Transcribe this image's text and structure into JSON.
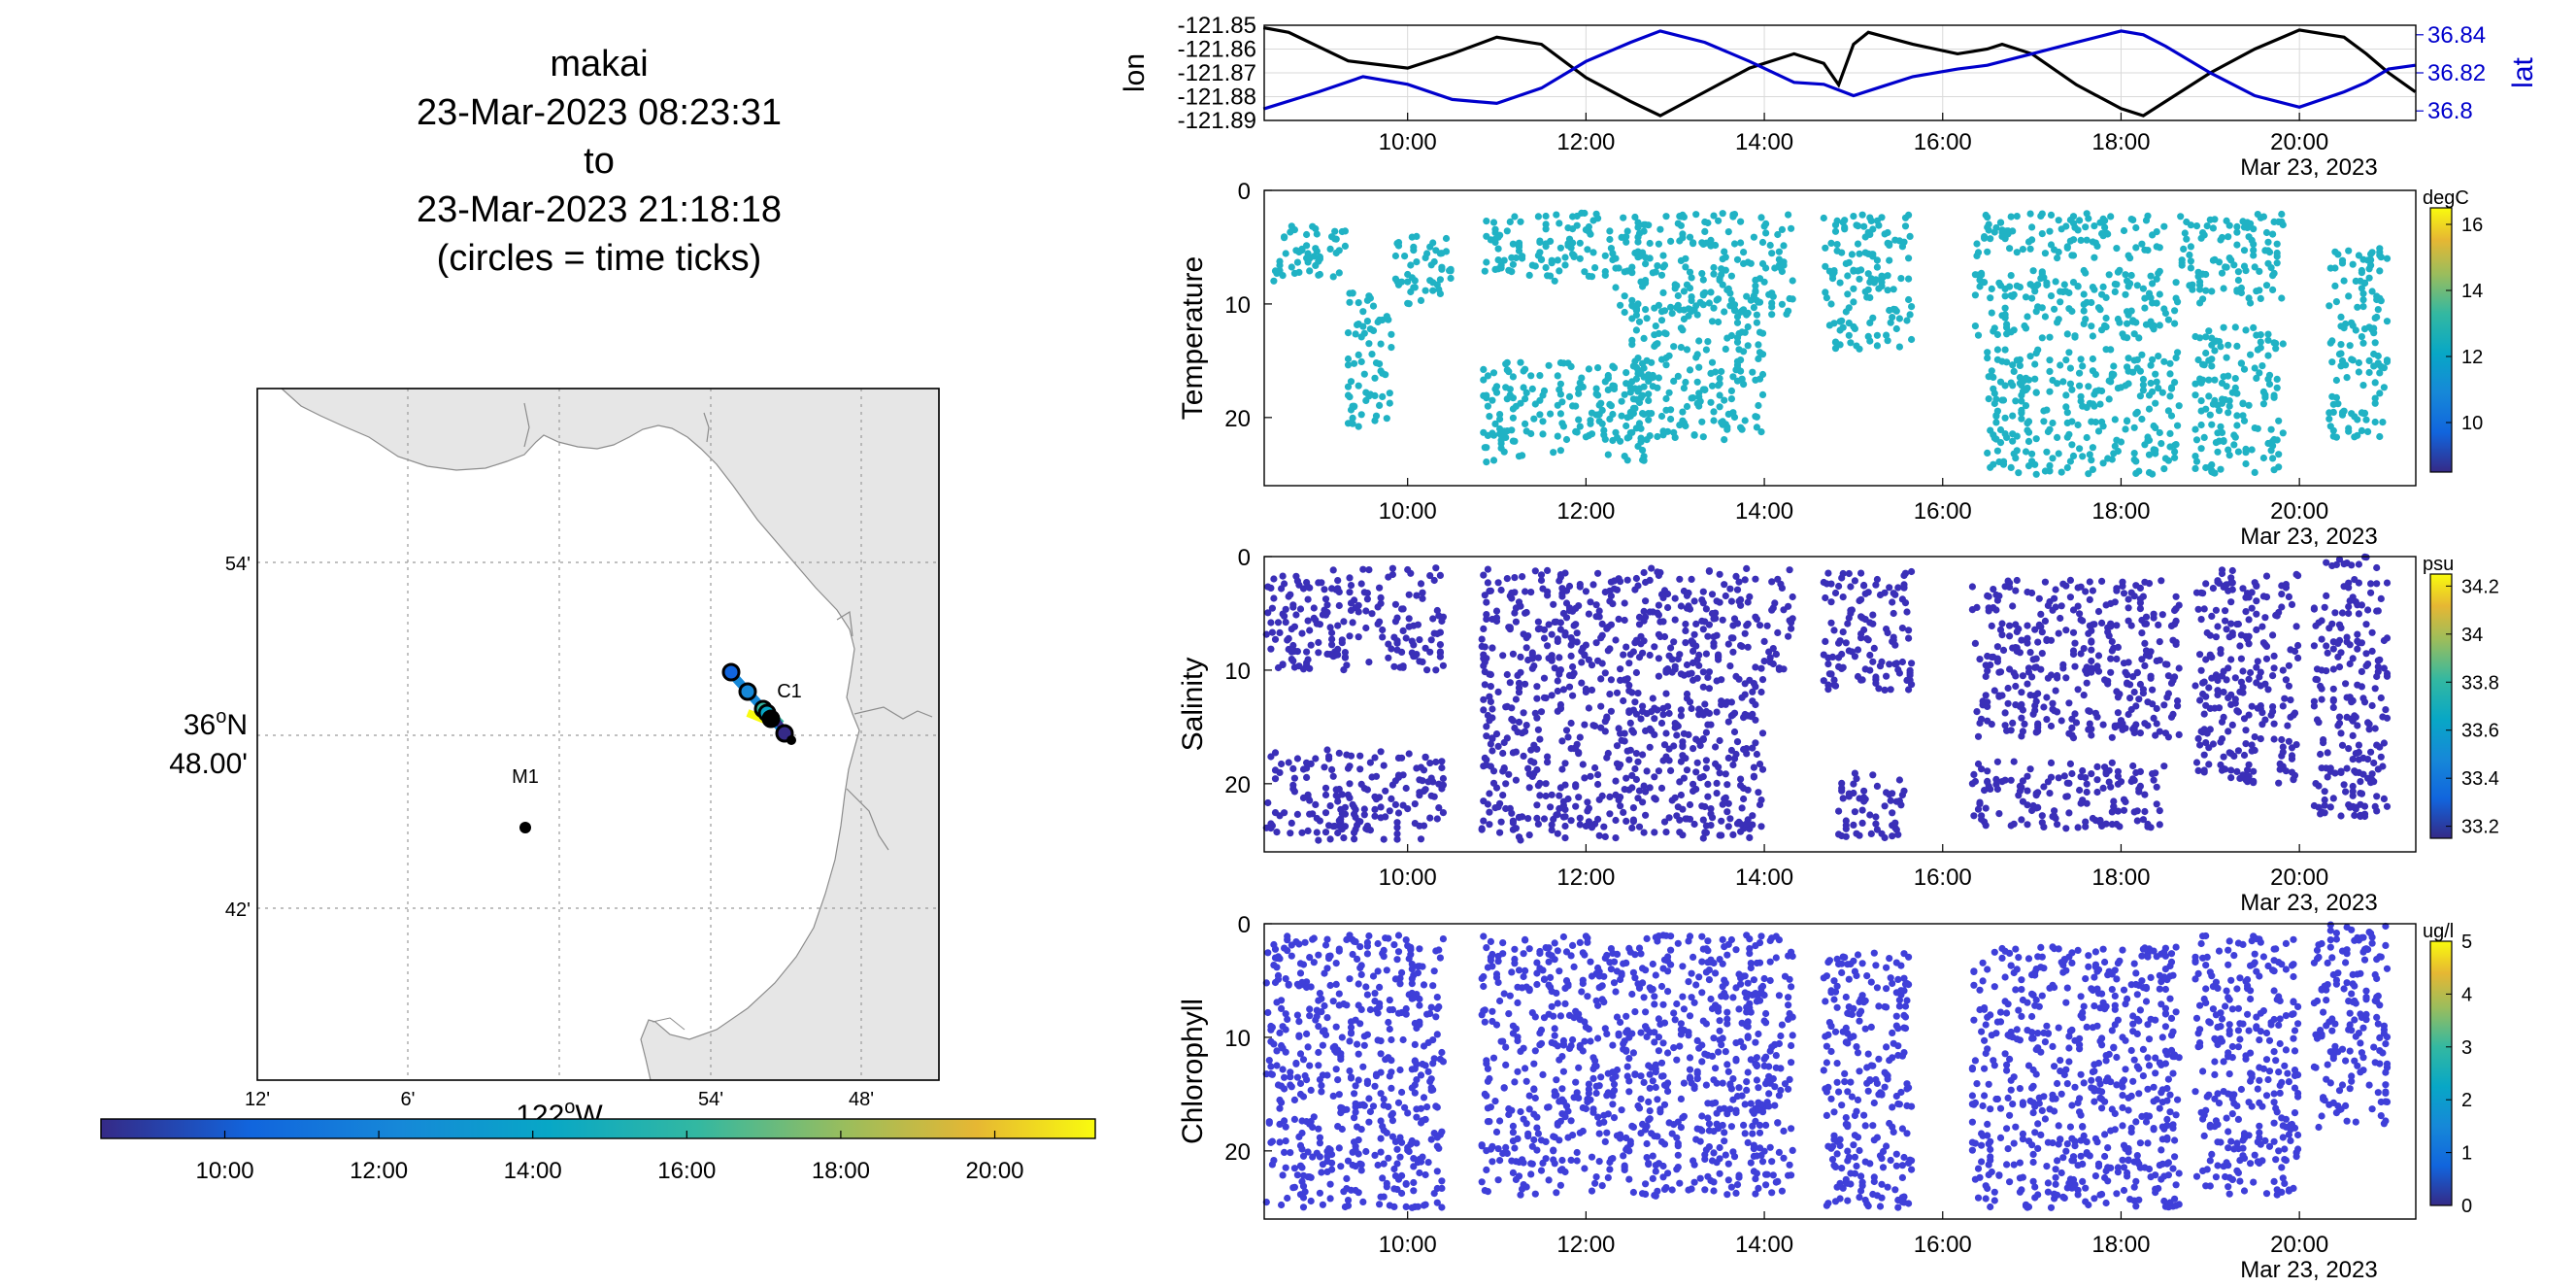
{
  "title": {
    "lines": [
      "makai",
      "23-Mar-2023 08:23:31",
      "to",
      "23-Mar-2023 21:18:18",
      "(circles = time ticks)"
    ]
  },
  "map": {
    "lat_tick_labels": [
      "54'",
      "48.00'",
      "42'"
    ],
    "lat_degree_label": "36",
    "lat_degree_suffix": "N",
    "lon_tick_labels": [
      "12'",
      "6'",
      "54'",
      "48'"
    ],
    "lon_degree_label": "122",
    "lon_degree_suffix": "W",
    "stations": [
      {
        "name": "M1"
      },
      {
        "name": "C1"
      }
    ],
    "land_color": "#e6e6e6"
  },
  "time_colorbar": {
    "tick_labels": [
      "10:00",
      "12:00",
      "14:00",
      "16:00",
      "18:00",
      "20:00"
    ]
  },
  "chart_data": [
    {
      "type": "line",
      "panel": "position",
      "x_tick_labels": [
        "10:00",
        "12:00",
        "14:00",
        "16:00",
        "18:00",
        "20:00"
      ],
      "date_label": "Mar 23, 2023",
      "xlim": [
        "08:23:31",
        "21:18:18"
      ],
      "left_axis": {
        "label": "lon",
        "tick_labels": [
          "-121.85",
          "-121.86",
          "-121.87",
          "-121.88",
          "-121.89"
        ],
        "ylim": [
          -121.89,
          -121.85
        ],
        "color": "#000000"
      },
      "right_axis": {
        "label": "lat",
        "tick_labels": [
          "36.84",
          "36.82",
          "36.8"
        ],
        "ylim": [
          36.795,
          36.845
        ],
        "color": "#0000cc"
      },
      "series": [
        {
          "name": "lon",
          "color": "#000000",
          "axis": "left",
          "x": [
            "08:23",
            "08:40",
            "09:20",
            "10:00",
            "10:30",
            "11:00",
            "11:30",
            "12:00",
            "12:30",
            "12:50",
            "13:20",
            "13:50",
            "14:20",
            "14:40",
            "14:50",
            "15:00",
            "15:10",
            "15:40",
            "16:10",
            "16:30",
            "16:40",
            "17:00",
            "17:30",
            "18:00",
            "18:15",
            "18:30",
            "19:00",
            "19:30",
            "20:00",
            "20:30",
            "20:45",
            "21:00",
            "21:18"
          ],
          "y": [
            -121.851,
            -121.853,
            -121.865,
            -121.868,
            -121.862,
            -121.855,
            -121.858,
            -121.872,
            -121.882,
            -121.888,
            -121.878,
            -121.868,
            -121.862,
            -121.866,
            -121.875,
            -121.858,
            -121.853,
            -121.858,
            -121.862,
            -121.86,
            -121.858,
            -121.862,
            -121.875,
            -121.885,
            -121.888,
            -121.882,
            -121.87,
            -121.86,
            -121.852,
            -121.855,
            -121.862,
            -121.87,
            -121.878
          ]
        },
        {
          "name": "lat",
          "color": "#0000cc",
          "axis": "right",
          "x": [
            "08:23",
            "09:00",
            "09:30",
            "10:00",
            "10:30",
            "11:00",
            "11:30",
            "12:00",
            "12:30",
            "12:50",
            "13:20",
            "13:50",
            "14:20",
            "14:40",
            "15:00",
            "15:20",
            "15:40",
            "16:10",
            "16:30",
            "17:00",
            "17:30",
            "18:00",
            "18:15",
            "18:30",
            "19:00",
            "19:30",
            "20:00",
            "20:30",
            "20:45",
            "21:00",
            "21:18"
          ],
          "y": [
            36.801,
            36.81,
            36.818,
            36.814,
            36.806,
            36.804,
            36.812,
            36.826,
            36.836,
            36.842,
            36.836,
            36.826,
            36.815,
            36.814,
            36.808,
            36.813,
            36.818,
            36.822,
            36.824,
            36.83,
            36.836,
            36.842,
            36.84,
            36.834,
            36.82,
            36.808,
            36.802,
            36.81,
            36.815,
            36.822,
            36.824
          ]
        }
      ]
    },
    {
      "type": "scatter",
      "panel": "temperature",
      "ylabel": "Temperature",
      "x_tick_labels": [
        "10:00",
        "12:00",
        "14:00",
        "16:00",
        "18:00",
        "20:00"
      ],
      "y_tick_labels": [
        "0",
        "10",
        "20"
      ],
      "ylim": [
        0,
        26
      ],
      "y_reversed": true,
      "xlim": [
        "08:23:31",
        "21:18:18"
      ],
      "point_color": "#20b2c4",
      "colorbar": {
        "unit": "degC",
        "tick_labels": [
          "16",
          "14",
          "12",
          "10"
        ],
        "range": [
          8.5,
          16.5
        ]
      },
      "date_label": "Mar 23, 2023",
      "groups": [
        {
          "t0": "08:30",
          "t1": "09:20",
          "d0": 3,
          "d1": 8
        },
        {
          "t0": "09:20",
          "t1": "09:50",
          "d0": 9,
          "d1": 21
        },
        {
          "t0": "09:50",
          "t1": "10:30",
          "d0": 4,
          "d1": 10
        },
        {
          "t0": "10:50",
          "t1": "12:20",
          "d0": 2,
          "d1": 8
        },
        {
          "t0": "10:50",
          "t1": "12:40",
          "d0": 15,
          "d1": 24
        },
        {
          "t0": "12:20",
          "t1": "14:20",
          "d0": 2,
          "d1": 11
        },
        {
          "t0": "12:30",
          "t1": "14:00",
          "d0": 10,
          "d1": 22
        },
        {
          "t0": "14:40",
          "t1": "15:40",
          "d0": 2,
          "d1": 14
        },
        {
          "t0": "16:20",
          "t1": "18:30",
          "d0": 2,
          "d1": 6
        },
        {
          "t0": "16:20",
          "t1": "18:40",
          "d0": 7,
          "d1": 13
        },
        {
          "t0": "16:30",
          "t1": "18:40",
          "d0": 14,
          "d1": 25
        },
        {
          "t0": "18:40",
          "t1": "19:50",
          "d0": 2,
          "d1": 10
        },
        {
          "t0": "18:50",
          "t1": "19:50",
          "d0": 12,
          "d1": 25
        },
        {
          "t0": "20:20",
          "t1": "21:00",
          "d0": 5,
          "d1": 22
        }
      ]
    },
    {
      "type": "scatter",
      "panel": "salinity",
      "ylabel": "Salinity",
      "x_tick_labels": [
        "10:00",
        "12:00",
        "14:00",
        "16:00",
        "18:00",
        "20:00"
      ],
      "y_tick_labels": [
        "0",
        "10",
        "20"
      ],
      "ylim": [
        0,
        26
      ],
      "y_reversed": true,
      "xlim": [
        "08:23:31",
        "21:18:18"
      ],
      "point_color": "#3a2fb8",
      "colorbar": {
        "unit": "psu",
        "tick_labels": [
          "34.2",
          "34",
          "33.8",
          "33.6",
          "33.4",
          "33.2"
        ],
        "range": [
          33.15,
          34.25
        ]
      },
      "date_label": "Mar 23, 2023",
      "groups": [
        {
          "t0": "08:25",
          "t1": "10:25",
          "d0": 1,
          "d1": 10
        },
        {
          "t0": "08:25",
          "t1": "10:25",
          "d0": 17,
          "d1": 25
        },
        {
          "t0": "10:50",
          "t1": "14:20",
          "d0": 1,
          "d1": 10
        },
        {
          "t0": "10:50",
          "t1": "14:00",
          "d0": 10,
          "d1": 25
        },
        {
          "t0": "14:40",
          "t1": "15:40",
          "d0": 1,
          "d1": 12
        },
        {
          "t0": "14:50",
          "t1": "15:35",
          "d0": 19,
          "d1": 25
        },
        {
          "t0": "16:20",
          "t1": "18:40",
          "d0": 2,
          "d1": 16
        },
        {
          "t0": "16:20",
          "t1": "18:30",
          "d0": 18,
          "d1": 24
        },
        {
          "t0": "18:50",
          "t1": "20:00",
          "d0": 1,
          "d1": 20
        },
        {
          "t0": "20:10",
          "t1": "21:00",
          "d0": 0,
          "d1": 23
        }
      ]
    },
    {
      "type": "scatter",
      "panel": "chlorophyll",
      "ylabel": "Chlorophyll",
      "x_tick_labels": [
        "10:00",
        "12:00",
        "14:00",
        "16:00",
        "18:00",
        "20:00"
      ],
      "y_tick_labels": [
        "0",
        "10",
        "20"
      ],
      "ylim": [
        0,
        26
      ],
      "y_reversed": true,
      "xlim": [
        "08:23:31",
        "21:18:18"
      ],
      "point_color": "#3f3fd9",
      "colorbar": {
        "unit": "ug/l",
        "tick_labels": [
          "5",
          "4",
          "3",
          "2",
          "1",
          "0"
        ],
        "range": [
          0,
          5
        ]
      },
      "date_label": "Mar 23, 2023",
      "groups": [
        {
          "t0": "08:25",
          "t1": "10:25",
          "d0": 1,
          "d1": 10
        },
        {
          "t0": "08:25",
          "t1": "10:25",
          "d0": 10,
          "d1": 25
        },
        {
          "t0": "10:50",
          "t1": "14:20",
          "d0": 1,
          "d1": 10
        },
        {
          "t0": "10:50",
          "t1": "14:20",
          "d0": 10,
          "d1": 24
        },
        {
          "t0": "14:40",
          "t1": "15:40",
          "d0": 2,
          "d1": 25
        },
        {
          "t0": "16:20",
          "t1": "18:40",
          "d0": 2,
          "d1": 25
        },
        {
          "t0": "18:50",
          "t1": "20:00",
          "d0": 1,
          "d1": 24
        },
        {
          "t0": "20:10",
          "t1": "21:00",
          "d0": 0,
          "d1": 18
        }
      ]
    }
  ]
}
